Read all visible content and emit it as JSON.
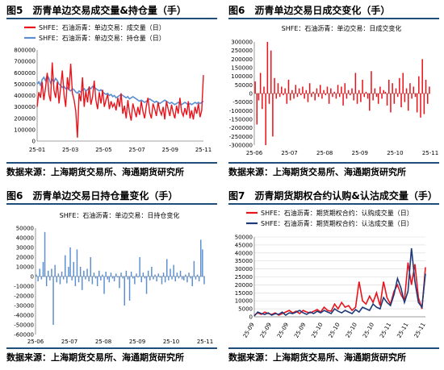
{
  "panels": [
    {
      "fig": "图5",
      "title": "沥青单边交易成交量&持仓量（手）",
      "source": "数据来源：上海期货交易所、海通期货研究所"
    },
    {
      "fig": "图6",
      "title": "沥青单边交易日成交变化（手）",
      "source": "数据来源：上海期货交易所、海通期货研究所"
    },
    {
      "fig": "图6",
      "title": "沥青单边交易日持仓量变化（手）",
      "source": "数据来源：上海期货交易所、海通期货研究所"
    },
    {
      "fig": "图7",
      "title": "沥青期货期权合约认购&认沽成交量（手）",
      "source": "数据来源：上海期货交易所、海通期货研究所"
    }
  ],
  "colors": {
    "red": "#e8141c",
    "blue": "#5b8fd0",
    "navy": "#1f3a7a",
    "border": "#1f4e79"
  },
  "chart_data": [
    {
      "type": "line",
      "xlabel": "",
      "ylabel": "",
      "x_ticks": [
        "25-01",
        "25-03",
        "25-05",
        "25-07",
        "25-09",
        "25-11"
      ],
      "ylim": [
        0,
        800000
      ],
      "y_ticks": [
        0,
        100000,
        200000,
        300000,
        400000,
        500000,
        600000,
        700000,
        800000
      ],
      "legend_position": "top-left",
      "grid": false,
      "series": [
        {
          "name": "SHFE：石油沥青：单边交易：成交量（日）",
          "color": "#e8141c",
          "values": [
            300000,
            430000,
            380000,
            520000,
            360000,
            470000,
            600000,
            410000,
            350000,
            690000,
            450000,
            380000,
            520000,
            330000,
            470000,
            620000,
            410000,
            300000,
            560000,
            450000,
            680000,
            420000,
            360000,
            260000,
            30000,
            420000,
            350000,
            560000,
            300000,
            440000,
            340000,
            480000,
            320000,
            390000,
            530000,
            360000,
            280000,
            430000,
            330000,
            450000,
            300000,
            360000,
            410000,
            280000,
            350000,
            300000,
            330000,
            270000,
            380000,
            300000,
            420000,
            240000,
            310000,
            200000,
            360000,
            250000,
            180000,
            330000,
            270000,
            210000,
            300000,
            230000,
            350000,
            260000,
            200000,
            310000,
            380000,
            250000,
            200000,
            330000,
            280000,
            220000,
            340000,
            270000,
            230000,
            300000,
            190000,
            350000,
            280000,
            220000,
            320000,
            250000,
            200000,
            310000,
            240000,
            380000,
            260000,
            220000,
            290000,
            230000,
            350000,
            200000,
            270000,
            190000,
            300000,
            240000,
            330000,
            210000,
            270000,
            580000
          ]
        },
        {
          "name": "SHFE：石油沥青：单边交易：持仓量（日）",
          "color": "#5b8fd0",
          "values": [
            500000,
            520000,
            490000,
            540000,
            560000,
            530000,
            580000,
            550000,
            510000,
            540000,
            520000,
            550000,
            530000,
            500000,
            490000,
            470000,
            480000,
            460000,
            470000,
            450000,
            440000,
            460000,
            450000,
            430000,
            420000,
            440000,
            430000,
            450000,
            460000,
            440000,
            450000,
            470000,
            460000,
            480000,
            470000,
            460000,
            450000,
            440000,
            450000,
            430000,
            420000,
            410000,
            420000,
            400000,
            410000,
            390000,
            400000,
            380000,
            390000,
            400000,
            410000,
            400000,
            390000,
            380000,
            390000,
            370000,
            380000,
            390000,
            380000,
            370000,
            360000,
            350000,
            360000,
            350000,
            340000,
            350000,
            360000,
            370000,
            360000,
            350000,
            340000,
            350000,
            340000,
            330000,
            340000,
            350000,
            360000,
            350000,
            340000,
            330000,
            340000,
            330000,
            320000,
            330000,
            340000,
            330000,
            320000,
            330000,
            340000,
            330000,
            320000,
            330000,
            320000,
            330000,
            340000,
            330000,
            340000,
            330000,
            340000,
            350000
          ]
        }
      ]
    },
    {
      "type": "bar",
      "xlabel": "",
      "ylabel": "",
      "title": "SHFE：石油沥青：单边交易：日成交变化",
      "x_ticks": [
        "25-06",
        "25-07",
        "25-08",
        "25-09",
        "25-10",
        "25-11"
      ],
      "ylim": [
        -300000,
        300000
      ],
      "y_ticks": [
        -300000,
        -250000,
        -200000,
        -150000,
        -100000,
        -50000,
        0,
        50000,
        100000,
        150000,
        200000,
        250000,
        300000
      ],
      "color": "#e8141c",
      "values": [
        70000,
        -180000,
        -40000,
        120000,
        -90000,
        40000,
        -300000,
        300000,
        -60000,
        250000,
        -250000,
        90000,
        -30000,
        60000,
        -20000,
        40000,
        -10000,
        30000,
        -60000,
        80000,
        -40000,
        20000,
        -30000,
        50000,
        -20000,
        30000,
        -10000,
        40000,
        -30000,
        20000,
        -50000,
        60000,
        -20000,
        10000,
        -40000,
        30000,
        -20000,
        50000,
        -30000,
        20000,
        -10000,
        40000,
        -60000,
        30000,
        -20000,
        10000,
        -30000,
        50000,
        -20000,
        40000,
        -70000,
        60000,
        -30000,
        20000,
        -10000,
        30000,
        -40000,
        120000,
        -60000,
        20000,
        -50000,
        80000,
        -20000,
        10000,
        -30000,
        -100000,
        130000,
        -40000,
        30000,
        -20000,
        -60000,
        40000,
        -30000,
        20000,
        10000,
        -70000,
        80000,
        -110000,
        60000,
        -60000,
        30000,
        -20000,
        90000,
        -80000,
        120000,
        -50000,
        30000,
        -100000,
        60000,
        -30000,
        40000,
        -20000,
        -110000,
        100000,
        -140000,
        200000,
        -120000,
        80000,
        -60000,
        40000
      ]
    },
    {
      "type": "bar",
      "xlabel": "",
      "ylabel": "",
      "title": "SHFE：石油沥青：单边交易：日持仓变化",
      "x_ticks": [
        "25-06",
        "25-07",
        "25-08",
        "25-09",
        "25-10",
        "25-11"
      ],
      "ylim": [
        -60000,
        50000
      ],
      "y_ticks": [
        -60000,
        -50000,
        -40000,
        -30000,
        -20000,
        -10000,
        0,
        10000,
        20000,
        30000,
        40000,
        50000
      ],
      "color": "#5b8fd0",
      "values": [
        2000,
        -5000,
        8000,
        -3000,
        15000,
        46000,
        -10000,
        6000,
        -4000,
        8000,
        -50000,
        12000,
        -6000,
        3000,
        -8000,
        5000,
        -3000,
        22000,
        -7000,
        10000,
        30000,
        -4000,
        15000,
        -10000,
        28000,
        -6000,
        10000,
        -14000,
        6000,
        -3000,
        8000,
        -5000,
        20000,
        -8000,
        4000,
        -2000,
        -10000,
        6000,
        -4000,
        2000,
        -18000,
        5000,
        -3000,
        -6000,
        4000,
        -2000,
        -5000,
        3000,
        -1000,
        -12000,
        4000,
        -2000,
        -30000,
        6000,
        -3000,
        -25000,
        5000,
        -2000,
        -8000,
        3000,
        -1000,
        20000,
        -6000,
        4000,
        -2000,
        -18000,
        6000,
        -4000,
        10000,
        -3000,
        2000,
        -5000,
        3000,
        -1000,
        -8000,
        4000,
        -6000,
        18000,
        -4000,
        8000,
        -3000,
        12000,
        -5000,
        4000,
        -2000,
        6000,
        -3000,
        -4000,
        2000,
        -6000,
        4000,
        -2000,
        -10000,
        16000,
        -3000,
        2000,
        -5000,
        38000,
        28000,
        -8000
      ]
    },
    {
      "type": "line",
      "xlabel": "",
      "ylabel": "",
      "x_ticks": [
        "25-09",
        "25-09",
        "25-09",
        "25-09",
        "25-10",
        "25-10",
        "25-10",
        "25-10",
        "25-11",
        "25-11",
        "25-11"
      ],
      "ylim": [
        0,
        50000
      ],
      "y_ticks": [
        0,
        5000,
        10000,
        15000,
        20000,
        25000,
        30000,
        35000,
        40000,
        45000,
        50000
      ],
      "legend_position": "top-left",
      "grid": true,
      "series": [
        {
          "name": "SHFE：石油沥青：期货期权合约：认购成交量（日）",
          "color": "#e8141c",
          "values": [
            1000,
            2500,
            1500,
            3000,
            2000,
            1500,
            2500,
            1000,
            2000,
            3000,
            4000,
            2500,
            3500,
            2000,
            4000,
            3000,
            2500,
            3500,
            4500,
            3000,
            6000,
            4000,
            3500,
            8000,
            5000,
            9000,
            6000,
            7000,
            4000,
            6000,
            22000,
            10000,
            8000,
            13000,
            9000,
            15000,
            7000,
            22000,
            12000,
            8000,
            16000,
            20000,
            14000,
            10000,
            34000,
            20000,
            33000,
            12000,
            5000,
            31000
          ]
        },
        {
          "name": "SHFE：石油沥青：期货期权合约：认沽成交量（日）",
          "color": "#1f3a7a",
          "values": [
            500,
            3000,
            2000,
            1500,
            2500,
            1000,
            2000,
            1500,
            3000,
            1000,
            2500,
            2000,
            3000,
            4000,
            2500,
            1500,
            3000,
            2000,
            3500,
            2500,
            4000,
            3000,
            2000,
            5000,
            3500,
            2500,
            4000,
            3000,
            2000,
            4500,
            3000,
            6000,
            5000,
            4000,
            8000,
            6000,
            5000,
            12000,
            9000,
            7000,
            14000,
            24000,
            18000,
            9000,
            16000,
            43000,
            22000,
            9000,
            6000,
            27000
          ]
        }
      ]
    }
  ]
}
